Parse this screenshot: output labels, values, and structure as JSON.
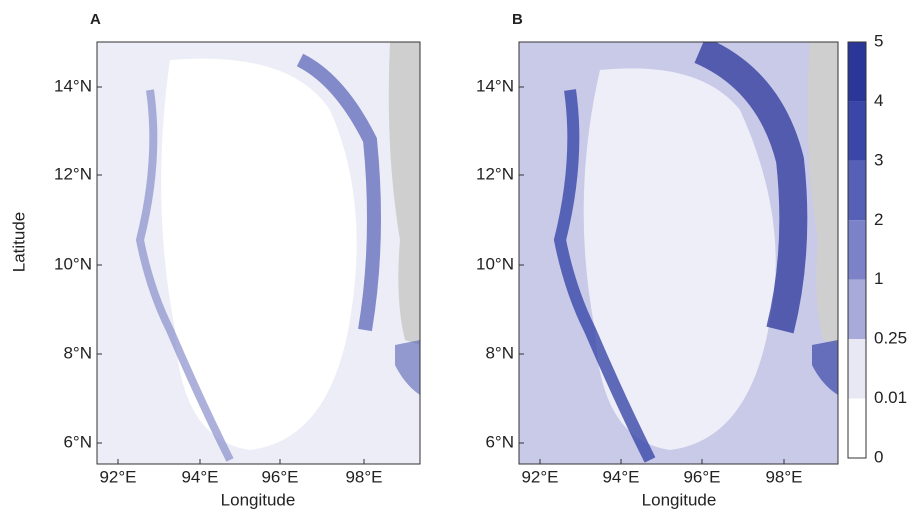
{
  "panels": [
    {
      "label": "A"
    },
    {
      "label": "B"
    }
  ],
  "xaxis": {
    "label": "Longitude",
    "ticks": [
      "92°E",
      "94°E",
      "96°E",
      "98°E"
    ]
  },
  "yaxis": {
    "label": "Latitude",
    "ticks": [
      "14°N",
      "12°N",
      "10°N",
      "8°N",
      "6°N"
    ]
  },
  "colorbar": {
    "ticks": [
      "5",
      "4",
      "3",
      "2",
      "1",
      "0.25",
      "0.01",
      "0"
    ],
    "colors": [
      "#2b3699",
      "#3a47a8",
      "#5560b6",
      "#7c82c8",
      "#a8abda",
      "#e7e8f4",
      "#ffffff"
    ]
  },
  "land_color": "#cfcfcf"
}
